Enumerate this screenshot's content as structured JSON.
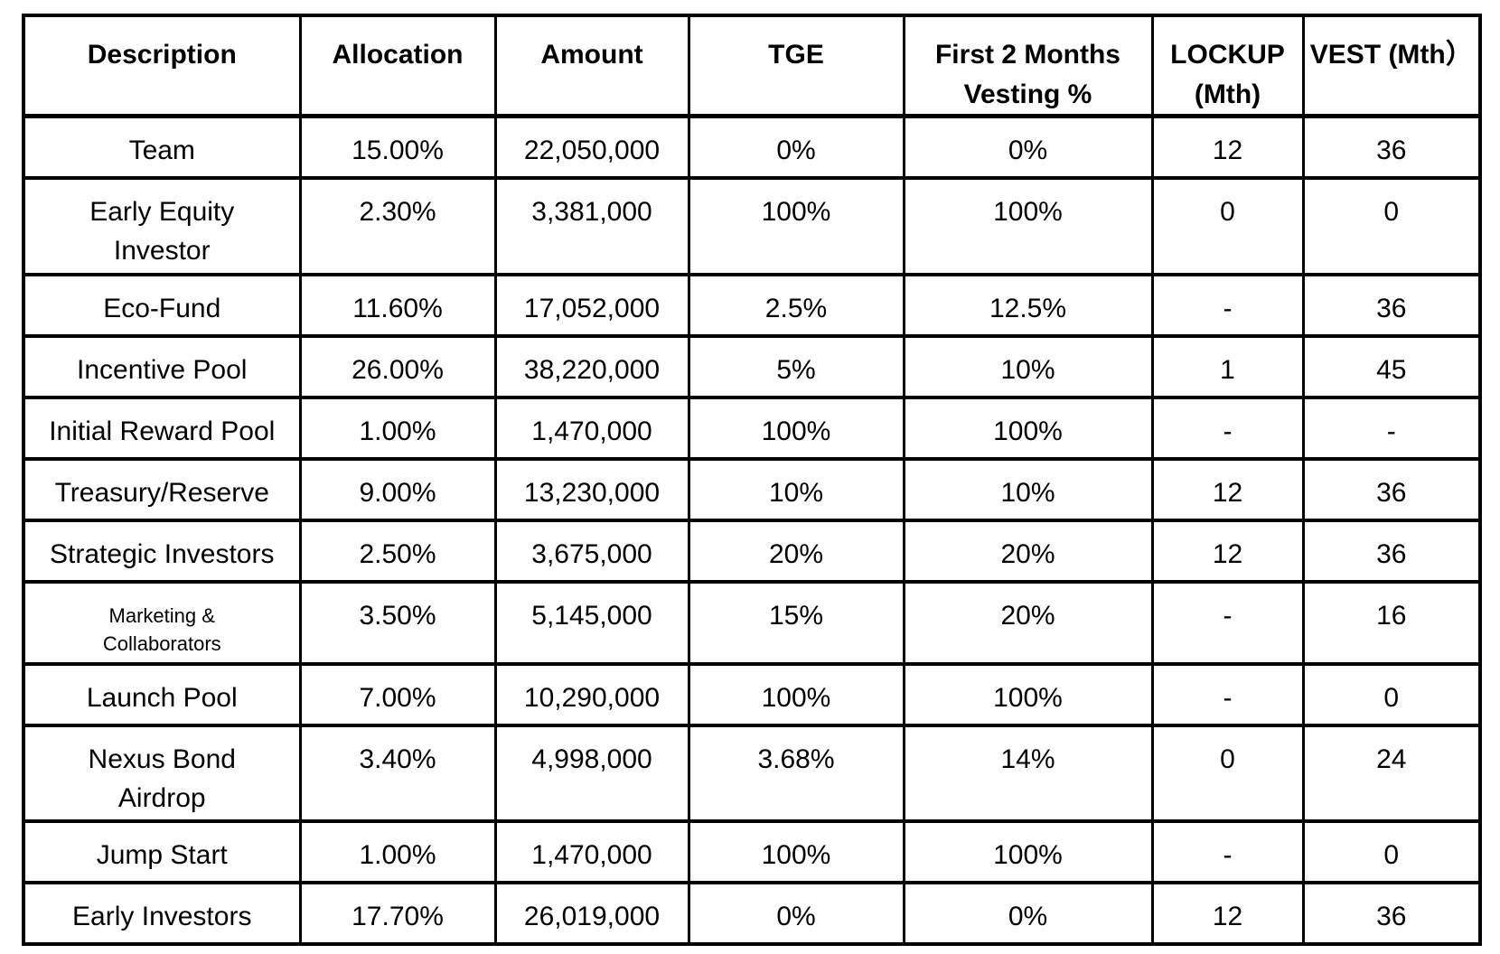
{
  "table": {
    "columns": [
      "Description",
      "Allocation",
      "Amount",
      "TGE",
      "First 2 Months\nVesting %",
      "LOCKUP\n(Mth)",
      "VEST (Mth）"
    ],
    "rows": [
      [
        "Team",
        "15.00%",
        "22,050,000",
        "0%",
        "0%",
        "12",
        "36"
      ],
      [
        "Early Equity\nInvestor",
        "2.30%",
        "3,381,000",
        "100%",
        "100%",
        "0",
        "0"
      ],
      [
        "Eco-Fund",
        "11.60%",
        "17,052,000",
        "2.5%",
        "12.5%",
        "-",
        "36"
      ],
      [
        "Incentive Pool",
        "26.00%",
        "38,220,000",
        "5%",
        "10%",
        "1",
        "45"
      ],
      [
        "Initial Reward Pool",
        "1.00%",
        "1,470,000",
        "100%",
        "100%",
        "-",
        "-"
      ],
      [
        "Treasury/Reserve",
        "9.00%",
        "13,230,000",
        "10%",
        "10%",
        "12",
        "36"
      ],
      [
        "Strategic Investors",
        "2.50%",
        "3,675,000",
        "20%",
        "20%",
        "12",
        "36"
      ],
      [
        "Marketing &\nCollaborators",
        "3.50%",
        "5,145,000",
        "15%",
        "20%",
        "-",
        "16"
      ],
      [
        "Launch Pool",
        "7.00%",
        "10,290,000",
        "100%",
        "100%",
        "-",
        "0"
      ],
      [
        "Nexus Bond\nAirdrop",
        "3.40%",
        "4,998,000",
        "3.68%",
        "14%",
        "0",
        "24"
      ],
      [
        "Jump Start",
        "1.00%",
        "1,470,000",
        "100%",
        "100%",
        "-",
        "0"
      ],
      [
        "Early Investors",
        "17.70%",
        "26,019,000",
        "0%",
        "0%",
        "12",
        "36"
      ]
    ],
    "colors": {
      "border": "#000000",
      "text": "#000000",
      "background": "#ffffff"
    }
  }
}
